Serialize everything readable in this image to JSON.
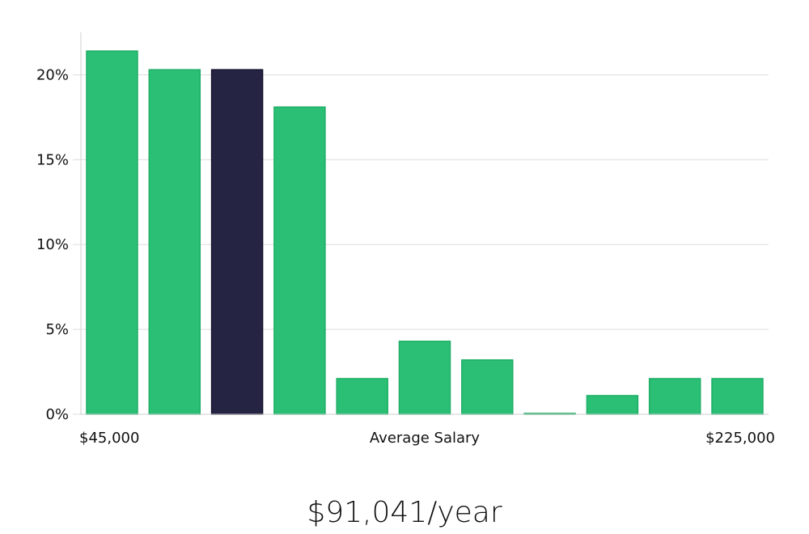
{
  "chart_data": {
    "type": "bar",
    "xlabel": "Average Salary",
    "x_range_labels": [
      "$45,000",
      "$225,000"
    ],
    "ylim": [
      0,
      22.5
    ],
    "yticks": [
      0,
      5,
      10,
      15,
      20
    ],
    "ytick_labels": [
      "0%",
      "5%",
      "10%",
      "15%",
      "20%"
    ],
    "grid": true,
    "values": [
      21.4,
      20.3,
      20.3,
      18.1,
      2.1,
      4.3,
      3.2,
      0.05,
      1.1,
      2.1,
      2.1
    ],
    "highlight_index": 2,
    "colors": {
      "bar": "#2bbf76",
      "bar_edge": "#1fae66",
      "highlight": "#262443",
      "grid": "#dddddd",
      "axis": "#cfcfcf"
    }
  },
  "headline": "$91,041/year"
}
